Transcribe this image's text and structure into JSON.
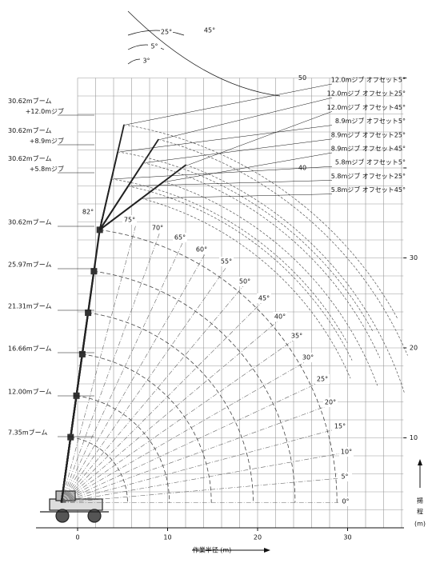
{
  "axes": {
    "x_label": "作業半径 (m)",
    "y_label": [
      "揚",
      "程",
      "(m)"
    ],
    "xticks": [
      0,
      10,
      20,
      30
    ],
    "yticks": [
      10,
      20,
      30,
      40,
      50
    ]
  },
  "booms": [
    {
      "label": [
        "30.62mブーム",
        "+12.0mジブ"
      ]
    },
    {
      "label": [
        "30.62mブーム",
        "+8.9mジブ"
      ]
    },
    {
      "label": [
        "30.62mブーム",
        "+5.8mジブ"
      ]
    },
    {
      "label": [
        "30.62mブーム"
      ]
    },
    {
      "label": [
        "25.97mブーム"
      ]
    },
    {
      "label": [
        "21.31mブーム"
      ]
    },
    {
      "label": [
        "16.66mブーム"
      ]
    },
    {
      "label": [
        "12.00mブーム"
      ]
    },
    {
      "label": [
        "7.35mブーム"
      ]
    }
  ],
  "jibs": [
    "12.0mジブ オフセット5°",
    "12.0mジブ オフセット25°",
    "12.0mジブ オフセット45°",
    "8.9mジブ オフセット5°",
    "8.9mジブ オフセット25°",
    "8.9mジブ オフセット45°",
    "5.8mジブ オフセット5°",
    "5.8mジブ オフセット25°",
    "5.8mジブ オフセット45°"
  ],
  "boom_angles": [
    "82°",
    "75°",
    "70°",
    "65°",
    "60°",
    "55°",
    "50°",
    "45°",
    "40°",
    "35°",
    "30°",
    "25°",
    "20°",
    "15°",
    "10°",
    "5°",
    "0°"
  ],
  "offset_angles": [
    "3°",
    "5°",
    "25°",
    "45°"
  ]
}
